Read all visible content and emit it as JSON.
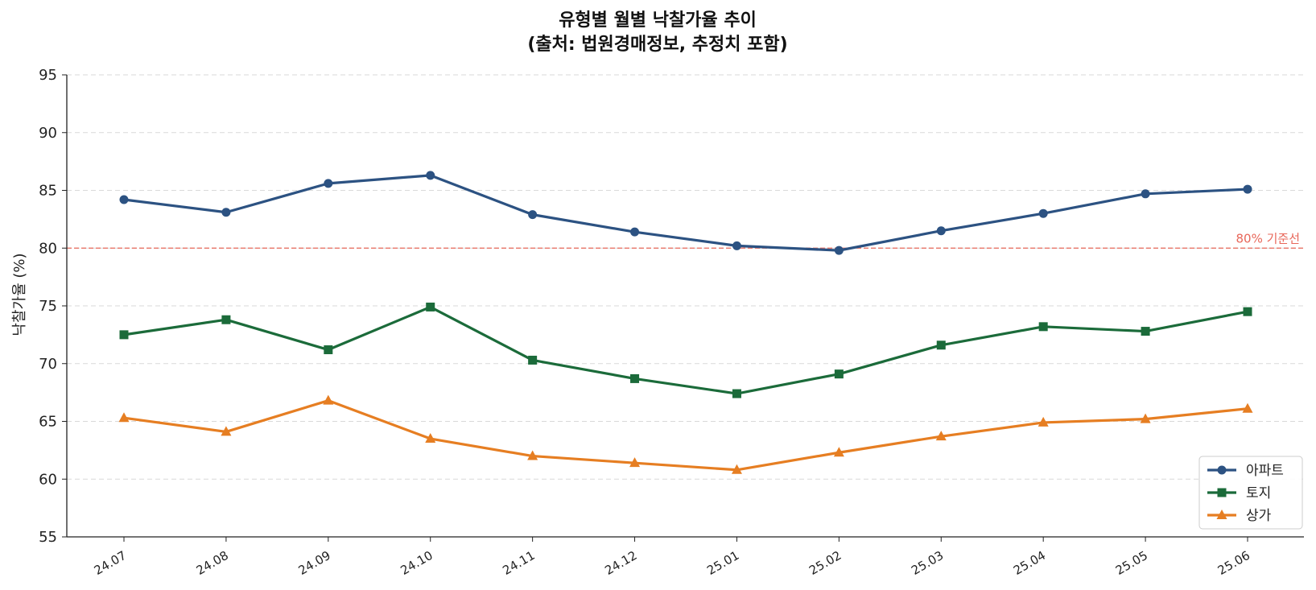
{
  "chart_data": {
    "type": "line",
    "title_line1": "유형별 월별 낙찰가율 추이",
    "title_line2": "(출처: 법원경매정보, 추정치 포함)",
    "xlabel": "",
    "ylabel": "낙찰가율 (%)",
    "ylim": [
      55,
      95
    ],
    "yticks": [
      55,
      60,
      65,
      70,
      75,
      80,
      85,
      90,
      95
    ],
    "grid": true,
    "legend_position": "lower-right",
    "categories": [
      "24.07",
      "24.08",
      "24.09",
      "24.10",
      "24.11",
      "24.12",
      "25.01",
      "25.02",
      "25.03",
      "25.04",
      "25.05",
      "25.06"
    ],
    "series": [
      {
        "name": "아파트",
        "marker": "circle",
        "color": "#2c5282",
        "values": [
          84.2,
          83.1,
          85.6,
          86.3,
          82.9,
          81.4,
          80.2,
          79.8,
          81.5,
          83.0,
          84.7,
          85.1
        ]
      },
      {
        "name": "토지",
        "marker": "square",
        "color": "#1b6b3a",
        "values": [
          72.5,
          73.8,
          71.2,
          74.9,
          70.3,
          68.7,
          67.4,
          69.1,
          71.6,
          73.2,
          72.8,
          74.5
        ]
      },
      {
        "name": "상가",
        "marker": "triangle",
        "color": "#e67e22",
        "values": [
          65.3,
          64.1,
          66.8,
          63.5,
          62.0,
          61.4,
          60.8,
          62.3,
          63.7,
          64.9,
          65.2,
          66.1
        ]
      }
    ],
    "reference_line": {
      "value": 80,
      "label": "80% 기준선",
      "color": "#e8675a"
    }
  }
}
